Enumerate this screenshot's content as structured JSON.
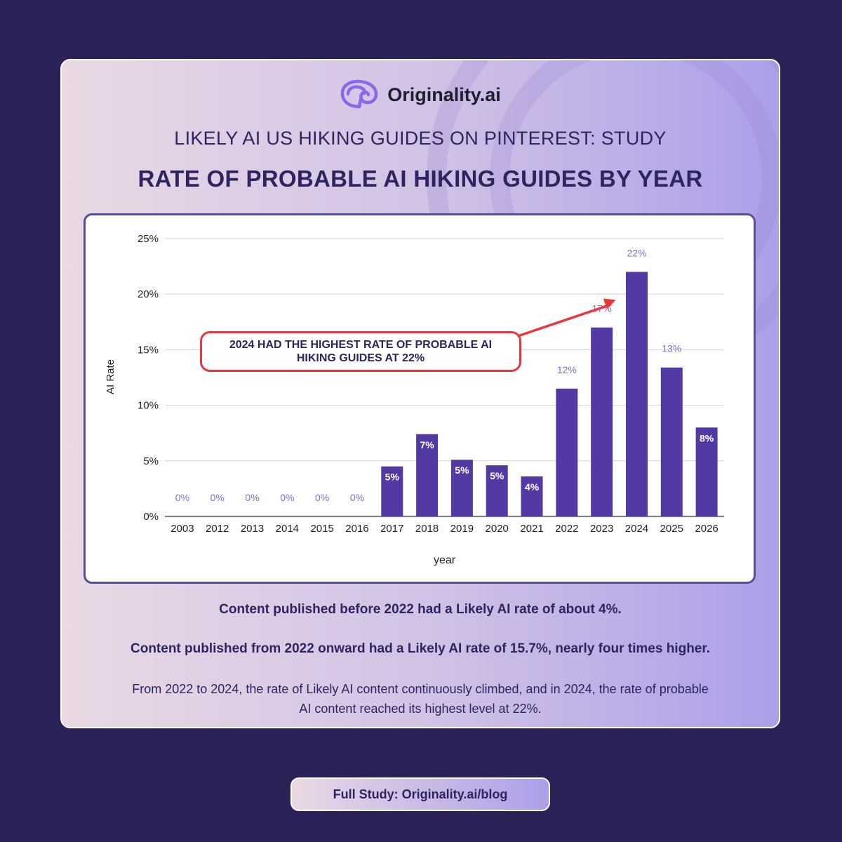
{
  "brand": {
    "name": "Originality.ai",
    "logo_icon": "brain-icon"
  },
  "header": {
    "subtitle": "LIKELY AI US HIKING GUIDES ON PINTEREST: STUDY",
    "title": "RATE OF PROBABLE AI HIKING GUIDES BY YEAR"
  },
  "chart_data": {
    "type": "bar",
    "categories": [
      "2003",
      "2012",
      "2013",
      "2014",
      "2015",
      "2016",
      "2017",
      "2018",
      "2019",
      "2020",
      "2021",
      "2022",
      "2023",
      "2024",
      "2025",
      "2026"
    ],
    "values": [
      0,
      0,
      0,
      0,
      0,
      0,
      4.5,
      7.4,
      5.1,
      4.6,
      3.6,
      11.5,
      17.0,
      22.0,
      13.4,
      8.0
    ],
    "data_labels": [
      "0%",
      "0%",
      "0%",
      "0%",
      "0%",
      "0%",
      "5%",
      "7%",
      "5%",
      "5%",
      "4%",
      "12%",
      "17%",
      "22%",
      "13%",
      "8%"
    ],
    "xlabel": "year",
    "ylabel": "AI Rate",
    "ylim": [
      0,
      25
    ],
    "yticks": [
      "0%",
      "5%",
      "10%",
      "15%",
      "20%",
      "25%"
    ],
    "grid": true,
    "bar_color": "#5239a4",
    "annotation": {
      "text": "2024 HAD THE HIGHEST RATE OF PROBABLE AI HIKING GUIDES AT 22%",
      "color": "#e8373b"
    }
  },
  "notes": {
    "line1": "Content published before 2022 had a Likely AI rate of about 4%.",
    "line2": "Content published from 2022 onward had a Likely AI rate of 15.7%, nearly four times higher.",
    "line3": "From 2022 to 2024, the rate of Likely AI content continuously climbed, and in 2024, the rate of probable AI content reached its highest level at 22%."
  },
  "footer": {
    "label": "Full Study: Originality.ai/blog"
  }
}
